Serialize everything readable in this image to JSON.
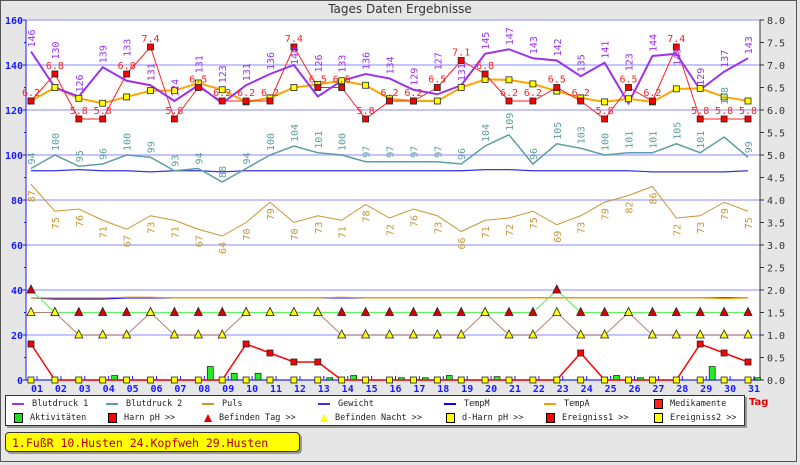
{
  "window_title": "Tages Daten Ergebnisse",
  "note": "1.FußR 10.Husten 24.Kopfweh 29.Husten",
  "chart_data": {
    "type": "line",
    "title": "Tages Daten Ergebnisse",
    "xlabel": "Tag",
    "categories": [
      "01",
      "02",
      "03",
      "04",
      "05",
      "06",
      "07",
      "08",
      "09",
      "10",
      "11",
      "12",
      "13",
      "14",
      "15",
      "16",
      "17",
      "18",
      "19",
      "20",
      "21",
      "22",
      "23",
      "24",
      "25",
      "26",
      "27",
      "28",
      "29",
      "30",
      "31"
    ],
    "left_ylim": [
      0,
      160
    ],
    "left_ticks": [
      "0",
      "20",
      "40",
      "60",
      "80",
      "100",
      "120",
      "140",
      "160"
    ],
    "right_ylim": [
      0,
      8
    ],
    "right_ticks": [
      "0.0",
      "0.5",
      "1.0",
      "1.5",
      "2.0",
      "2.5",
      "3.0",
      "3.5",
      "4.0",
      "4.5",
      "5.0",
      "5.5",
      "6.0",
      "6.5",
      "7.0",
      "7.5",
      "8.0"
    ],
    "grid": true,
    "series": [
      {
        "name": "Blutdruck 1",
        "color": "#9933ee",
        "axis": "left",
        "labels": true,
        "values": [
          146,
          130,
          126,
          139,
          133,
          131,
          124,
          131,
          123,
          131,
          136,
          140,
          126,
          133,
          136,
          134,
          129,
          127,
          131,
          145,
          147,
          143,
          142,
          135,
          141,
          123,
          144,
          145,
          129,
          137,
          143
        ]
      },
      {
        "name": "Blutdruck 2",
        "color": "#5f9ea0",
        "axis": "left",
        "labels": true,
        "values": [
          94,
          100,
          95,
          96,
          100,
          99,
          93,
          94,
          88,
          94,
          100,
          104,
          101,
          100,
          97,
          97,
          97,
          97,
          96,
          104,
          109,
          96,
          105,
          103,
          100,
          101,
          101,
          105,
          101,
          108,
          99
        ]
      },
      {
        "name": "Puls",
        "color": "#c89632",
        "axis": "left",
        "labels": true,
        "values": [
          87,
          75,
          76,
          71,
          67,
          73,
          71,
          67,
          64,
          70,
          79,
          70,
          73,
          71,
          78,
          72,
          76,
          73,
          66,
          71,
          72,
          75,
          69,
          73,
          79,
          82,
          86,
          72,
          73,
          79,
          75
        ]
      },
      {
        "name": "Gewicht",
        "color": "#3333ee",
        "axis": "left",
        "values": [
          93,
          93,
          93.5,
          93,
          93,
          92.5,
          93,
          93,
          92.5,
          93,
          93,
          93,
          93,
          93,
          93,
          93,
          93,
          93,
          93,
          93.5,
          93.5,
          93,
          93,
          93,
          93,
          93,
          92.5,
          92.5,
          92.5,
          92.5,
          93
        ]
      },
      {
        "name": "TempM",
        "color": "#0000ff",
        "axis": "left",
        "values": [
          36.5,
          36,
          36,
          36,
          36.5,
          36.5,
          36.5,
          36.5,
          36.5,
          36.5,
          36.5,
          36.5,
          36.5,
          36.5,
          36.5,
          36.5,
          36.5,
          36.5,
          36.5,
          36.5,
          36.5,
          36.5,
          36.5,
          36.5,
          36.5,
          36.5,
          36.5,
          36.5,
          36.5,
          36.5,
          36.5
        ]
      },
      {
        "name": "TempA",
        "color": "#ff9900",
        "axis": "left",
        "values": [
          36.5,
          36.5,
          36.5,
          36.5,
          36.8,
          36.8,
          36.5,
          36.5,
          36.5,
          36.5,
          36.5,
          36.5,
          36.5,
          36.8,
          36.5,
          36.5,
          36.5,
          36.5,
          36.5,
          36.5,
          36.5,
          36.5,
          36.5,
          36.5,
          36.5,
          36.5,
          36.5,
          36.5,
          36.5,
          36.2,
          36.5
        ]
      },
      {
        "name": "Harn pH",
        "color": "#ff2020",
        "axis": "right",
        "labels": true,
        "values": [
          6.2,
          6.8,
          5.8,
          5.8,
          6.8,
          7.4,
          5.8,
          6.5,
          6.2,
          6.2,
          6.2,
          7.4,
          6.5,
          6.5,
          5.8,
          6.2,
          6.2,
          6.5,
          7.1,
          6.8,
          6.2,
          6.2,
          6.5,
          6.2,
          5.8,
          6.5,
          6.2,
          7.4,
          5.8,
          5.8,
          5.8
        ]
      },
      {
        "name": "d-Harn pH",
        "color": "#ffa500",
        "axis": "right",
        "values": [
          6.2,
          6.5,
          6.26,
          6.15,
          6.29,
          6.43,
          6.43,
          6.6,
          6.45,
          6.18,
          6.27,
          6.5,
          6.57,
          6.65,
          6.55,
          6.25,
          6.2,
          6.2,
          6.5,
          6.68,
          6.67,
          6.58,
          6.42,
          6.27,
          6.18,
          6.25,
          6.18,
          6.47,
          6.48,
          6.29,
          6.2
        ]
      },
      {
        "name": "Befinden Tag",
        "color": "#66ee66",
        "axis": "left",
        "values": [
          40,
          30,
          30,
          30,
          30,
          30,
          30,
          30,
          30,
          30,
          30,
          30,
          30,
          30,
          30,
          30,
          30,
          30,
          30,
          30,
          30,
          30,
          40,
          30,
          30,
          30,
          30,
          30,
          30,
          30,
          30
        ]
      },
      {
        "name": "Befinden Nacht",
        "color": "#a0522d",
        "axis": "left",
        "values": [
          30,
          30,
          20,
          20,
          20,
          30,
          20,
          20,
          20,
          30,
          30,
          30,
          30,
          20,
          20,
          20,
          20,
          20,
          20,
          30,
          20,
          20,
          30,
          20,
          20,
          30,
          20,
          20,
          20,
          20,
          20
        ]
      },
      {
        "name": "Ereigniss1",
        "color": "#ff0000",
        "axis": "left",
        "values": [
          16,
          0,
          0,
          0,
          0,
          0,
          0,
          0,
          0,
          16,
          12,
          8,
          8,
          0,
          0,
          0,
          0,
          0,
          0,
          0,
          0,
          0,
          0,
          12,
          0,
          0,
          0,
          0,
          16,
          12,
          8
        ]
      },
      {
        "name": "Ereigniss2",
        "color": "#cc0000",
        "axis": "left",
        "values": [
          0,
          0,
          0,
          0,
          0,
          0,
          0,
          0,
          0,
          0,
          0,
          0,
          0,
          0,
          0,
          0,
          0,
          0,
          0,
          0,
          0,
          0,
          0,
          0,
          0,
          0,
          0,
          0,
          0,
          0,
          0
        ]
      }
    ],
    "bars": {
      "Aktivitäten": [
        {
          "day": 4.5,
          "value": 2
        },
        {
          "day": 8.5,
          "value": 6
        },
        {
          "day": 9.5,
          "value": 3
        },
        {
          "day": 10.5,
          "value": 3
        },
        {
          "day": 13.5,
          "value": 1
        },
        {
          "day": 14.5,
          "value": 2
        },
        {
          "day": 16.5,
          "value": 1
        },
        {
          "day": 17.5,
          "value": 1
        },
        {
          "day": 18.5,
          "value": 2
        },
        {
          "day": 20.5,
          "value": 1.5
        },
        {
          "day": 25.5,
          "value": 2
        },
        {
          "day": 26.5,
          "value": 1
        },
        {
          "day": 29.5,
          "value": 6
        },
        {
          "day": 31.4,
          "value": 1
        }
      ],
      "Medikamente": [
        {
          "day": 24,
          "value": 0.6
        }
      ]
    }
  },
  "legend": [
    {
      "label": "Blutdruck 1",
      "kind": "line",
      "color": "#9933ee"
    },
    {
      "label": "Blutdruck 2",
      "kind": "line",
      "color": "#5f9ea0"
    },
    {
      "label": "Puls",
      "kind": "line",
      "color": "#c89632"
    },
    {
      "label": "Gewicht",
      "kind": "line",
      "color": "#3333ee"
    },
    {
      "label": "TempM",
      "kind": "line",
      "color": "#0000ff"
    },
    {
      "label": "TempA",
      "kind": "line",
      "color": "#ff9900"
    },
    {
      "label": "Medikamente",
      "kind": "box",
      "color": "#ff2020"
    },
    {
      "label": "Aktivitäten",
      "kind": "box",
      "color": "#22dd22"
    },
    {
      "label": "Harn pH >>",
      "kind": "box",
      "color": "#ff0000"
    },
    {
      "label": "Befinden Tag >>",
      "kind": "tri",
      "color": "#dd0000"
    },
    {
      "label": "Befinden Nacht >>",
      "kind": "tri",
      "color": "#ffff00"
    },
    {
      "label": "d-Harn pH >>",
      "kind": "box",
      "color": "#ffff00"
    },
    {
      "label": "Ereigniss1 >>",
      "kind": "box",
      "color": "#ff0000"
    },
    {
      "label": "Ereigniss2 >>",
      "kind": "box",
      "color": "#ffff00"
    }
  ]
}
